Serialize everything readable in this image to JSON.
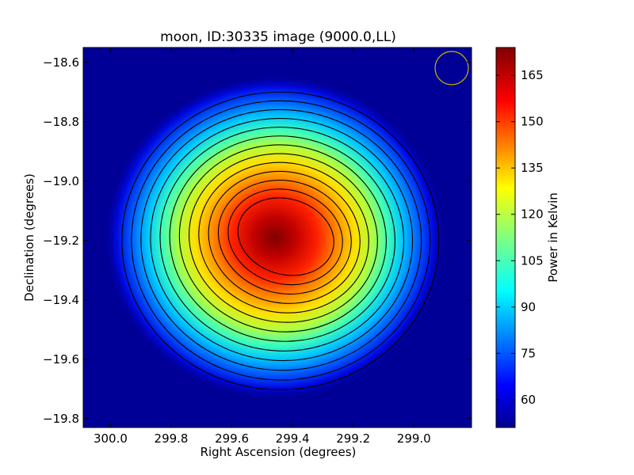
{
  "chart_data": {
    "type": "heatmap",
    "title": "moon, ID:30335 image (9000.0,LL)",
    "xlabel": "Right Ascension (degrees)",
    "ylabel": "Declination (degrees)",
    "colorbar_label": "Power in Kelvin",
    "colormap": "jet",
    "x_inverted": true,
    "xlim": [
      300.09,
      298.81
    ],
    "ylim": [
      -19.83,
      -18.55
    ],
    "x_ticks": [
      300.0,
      299.8,
      299.6,
      299.4,
      299.2,
      299.0
    ],
    "x_tick_labels": [
      "300.0",
      "299.8",
      "299.6",
      "299.4",
      "299.2",
      "299.0"
    ],
    "y_ticks": [
      -18.6,
      -18.8,
      -19.0,
      -19.2,
      -19.4,
      -19.6,
      -19.8
    ],
    "y_tick_labels": [
      "−18.6",
      "−18.8",
      "−19.0",
      "−19.2",
      "−19.4",
      "−19.6",
      "−19.8"
    ],
    "colorbar_range": [
      51,
      174
    ],
    "colorbar_ticks": [
      60,
      75,
      90,
      105,
      120,
      135,
      150,
      165
    ],
    "colorbar_tick_labels": [
      "60",
      "75",
      "90",
      "105",
      "120",
      "135",
      "150",
      "165"
    ],
    "peak": {
      "ra": 299.44,
      "dec": -19.18,
      "value": 172
    },
    "background_value": 52,
    "contour_count": 13,
    "beam_marker": {
      "shape": "circle",
      "color": "#c8b400",
      "ra": 298.86,
      "dec": -18.63
    }
  }
}
